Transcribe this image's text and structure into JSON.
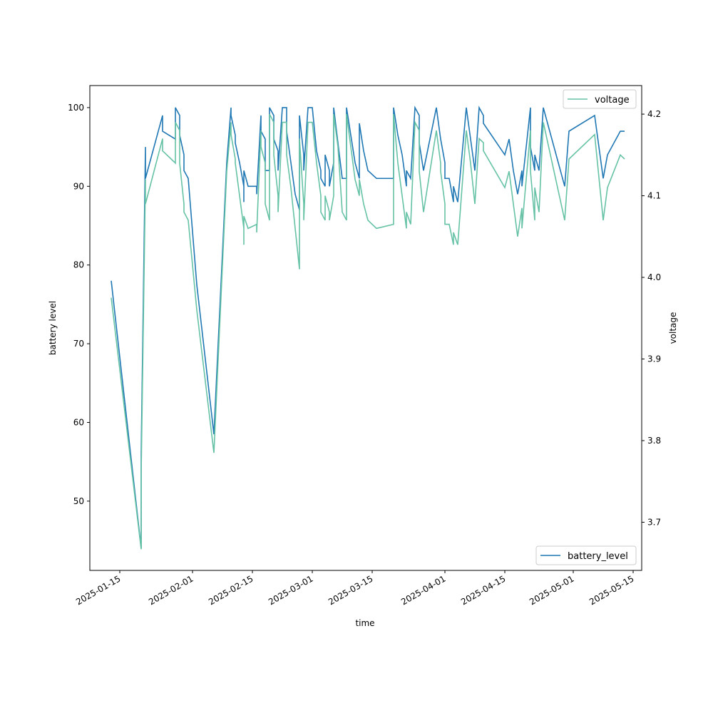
{
  "chart_data": {
    "type": "line",
    "xlabel": "time",
    "ylabel": "battery level",
    "y2label": "voltage",
    "x": [
      "2025-01-13",
      "2025-01-20",
      "2025-01-20",
      "2025-01-21",
      "2025-01-21",
      "2025-01-25",
      "2025-01-25",
      "2025-01-28",
      "2025-01-28",
      "2025-01-29",
      "2025-01-29",
      "2025-01-30",
      "2025-01-30",
      "2025-01-31",
      "2025-02-02",
      "2025-02-06",
      "2025-02-09",
      "2025-02-10",
      "2025-02-10",
      "2025-02-11",
      "2025-02-11",
      "2025-02-12",
      "2025-02-13",
      "2025-02-13",
      "2025-02-13",
      "2025-02-14",
      "2025-02-16",
      "2025-02-16",
      "2025-02-17",
      "2025-02-17",
      "2025-02-18",
      "2025-02-18",
      "2025-02-19",
      "2025-02-19",
      "2025-02-20",
      "2025-02-20",
      "2025-02-21",
      "2025-02-21",
      "2025-02-22",
      "2025-02-23",
      "2025-02-23",
      "2025-02-24",
      "2025-02-25",
      "2025-02-26",
      "2025-02-26",
      "2025-02-27",
      "2025-02-27",
      "2025-02-28",
      "2025-03-01",
      "2025-03-02",
      "2025-03-03",
      "2025-03-03",
      "2025-03-04",
      "2025-03-04",
      "2025-03-05",
      "2025-03-05",
      "2025-03-06",
      "2025-03-06",
      "2025-03-07",
      "2025-03-08",
      "2025-03-09",
      "2025-03-09",
      "2025-03-10",
      "2025-03-11",
      "2025-03-12",
      "2025-03-12",
      "2025-03-13",
      "2025-03-14",
      "2025-03-16",
      "2025-03-20",
      "2025-03-20",
      "2025-03-20",
      "2025-03-21",
      "2025-03-22",
      "2025-03-23",
      "2025-03-23",
      "2025-03-24",
      "2025-03-25",
      "2025-03-26",
      "2025-03-26",
      "2025-03-27",
      "2025-03-30",
      "2025-03-31",
      "2025-03-31",
      "2025-04-01",
      "2025-04-01",
      "2025-04-02",
      "2025-04-03",
      "2025-04-03",
      "2025-04-04",
      "2025-04-06",
      "2025-04-07",
      "2025-04-08",
      "2025-04-09",
      "2025-04-10",
      "2025-04-10",
      "2025-04-15",
      "2025-04-16",
      "2025-04-17",
      "2025-04-18",
      "2025-04-19",
      "2025-04-19",
      "2025-04-21",
      "2025-04-21",
      "2025-04-22",
      "2025-04-22",
      "2025-04-23",
      "2025-04-24",
      "2025-04-29",
      "2025-04-30",
      "2025-05-06",
      "2025-05-08",
      "2025-05-09",
      "2025-05-12",
      "2025-05-13"
    ],
    "series": [
      {
        "name": "battery_level",
        "color": "#1f77b4",
        "axis": "y",
        "values": [
          78,
          44,
          56,
          95,
          91,
          99,
          97,
          96,
          100,
          99,
          96.5,
          94,
          92,
          91,
          77.5,
          58.5,
          93,
          100,
          99,
          96.5,
          95.5,
          93,
          90,
          88,
          92,
          90,
          90,
          89,
          99,
          97,
          96,
          92,
          92,
          100,
          99,
          96,
          94.5,
          92,
          100,
          100,
          97,
          93,
          89,
          87,
          99,
          94,
          92,
          100,
          100,
          94.5,
          92,
          91,
          90,
          94,
          92,
          90,
          93,
          100,
          95.5,
          91,
          91,
          100,
          96.5,
          93,
          91,
          98,
          94.5,
          92,
          91,
          91,
          99,
          100,
          96.5,
          94,
          90,
          92,
          91,
          100,
          99,
          95.5,
          92,
          100,
          96,
          96,
          93,
          91,
          91,
          88,
          90,
          88,
          100,
          96,
          92,
          100,
          99,
          98,
          94,
          96,
          92,
          89,
          92,
          90,
          100,
          95,
          92,
          94,
          92,
          100,
          90,
          97,
          99,
          91,
          94,
          97,
          97
        ]
      },
      {
        "name": "voltage",
        "color": "#66c2a5",
        "axis": "y2",
        "values": [
          3.975,
          3.667,
          3.76,
          4.12,
          4.09,
          4.17,
          4.155,
          4.14,
          4.19,
          4.18,
          4.14,
          4.09,
          4.08,
          4.07,
          3.96,
          3.785,
          4.13,
          4.19,
          4.175,
          4.145,
          4.14,
          4.1,
          4.06,
          4.04,
          4.075,
          4.06,
          4.065,
          4.055,
          4.18,
          4.16,
          4.14,
          4.09,
          4.07,
          4.2,
          4.19,
          4.15,
          4.1,
          4.08,
          4.19,
          4.19,
          4.15,
          4.11,
          4.06,
          4.01,
          4.17,
          4.09,
          4.07,
          4.19,
          4.19,
          4.14,
          4.1,
          4.08,
          4.07,
          4.1,
          4.08,
          4.07,
          4.1,
          4.2,
          4.16,
          4.08,
          4.07,
          4.2,
          4.16,
          4.12,
          4.1,
          4.12,
          4.09,
          4.07,
          4.06,
          4.065,
          4.18,
          4.2,
          4.14,
          4.1,
          4.06,
          4.08,
          4.065,
          4.19,
          4.18,
          4.13,
          4.08,
          4.18,
          4.14,
          4.13,
          4.09,
          4.065,
          4.065,
          4.04,
          4.055,
          4.04,
          4.18,
          4.14,
          4.09,
          4.17,
          4.165,
          4.155,
          4.11,
          4.13,
          4.09,
          4.05,
          4.085,
          4.06,
          4.18,
          4.13,
          4.07,
          4.11,
          4.08,
          4.19,
          4.07,
          4.145,
          4.175,
          4.07,
          4.11,
          4.15,
          4.145
        ]
      }
    ],
    "xlim": [
      "2025-01-08",
      "2025-05-17"
    ],
    "xticks": [
      "2025-01-15",
      "2025-02-01",
      "2025-02-15",
      "2025-03-01",
      "2025-03-15",
      "2025-04-01",
      "2025-04-15",
      "2025-05-01",
      "2025-05-15"
    ],
    "ylim": [
      41.2,
      102.8
    ],
    "yticks": [
      50,
      60,
      70,
      80,
      90,
      100
    ],
    "y2lim": [
      3.641,
      4.235
    ],
    "y2ticks": [
      3.7,
      3.8,
      3.9,
      {
        "value": 4,
        "label": "4.0"
      },
      4.1,
      4.2
    ],
    "legend": {
      "y": "lower right",
      "y2": "upper right"
    }
  }
}
